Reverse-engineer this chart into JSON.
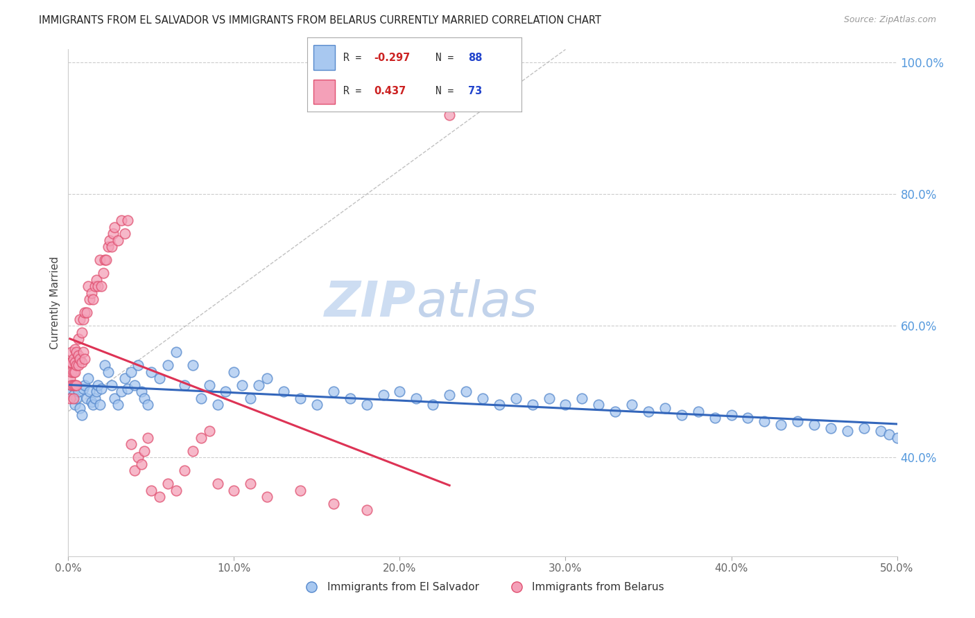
{
  "title": "IMMIGRANTS FROM EL SALVADOR VS IMMIGRANTS FROM BELARUS CURRENTLY MARRIED CORRELATION CHART",
  "source": "Source: ZipAtlas.com",
  "ylabel": "Currently Married",
  "xmin": 0.0,
  "xmax": 0.5,
  "ymin": 0.25,
  "ymax": 1.02,
  "yticks": [
    0.4,
    0.6,
    0.8,
    1.0
  ],
  "ytick_labels": [
    "40.0%",
    "60.0%",
    "80.0%",
    "100.0%"
  ],
  "xticks": [
    0.0,
    0.1,
    0.2,
    0.3,
    0.4,
    0.5
  ],
  "xtick_labels": [
    "0.0%",
    "10.0%",
    "20.0%",
    "30.0%",
    "40.0%",
    "50.0%"
  ],
  "blue_label": "Immigrants from El Salvador",
  "pink_label": "Immigrants from Belarus",
  "blue_color": "#A8C8F0",
  "pink_color": "#F4A0B8",
  "blue_edge_color": "#5588CC",
  "pink_edge_color": "#E05070",
  "blue_line_color": "#3366BB",
  "pink_line_color": "#DD3355",
  "ref_line_color": "#BBBBBB",
  "grid_color": "#CCCCCC",
  "bg_color": "#FFFFFF",
  "watermark_zip_color": "#C8D8F0",
  "watermark_atlas_color": "#C8D8F0",
  "blue_scatter_x": [
    0.001,
    0.002,
    0.003,
    0.004,
    0.005,
    0.006,
    0.007,
    0.008,
    0.009,
    0.01,
    0.011,
    0.012,
    0.013,
    0.014,
    0.015,
    0.016,
    0.017,
    0.018,
    0.019,
    0.02,
    0.022,
    0.024,
    0.026,
    0.028,
    0.03,
    0.032,
    0.034,
    0.036,
    0.038,
    0.04,
    0.042,
    0.044,
    0.046,
    0.048,
    0.05,
    0.055,
    0.06,
    0.065,
    0.07,
    0.075,
    0.08,
    0.085,
    0.09,
    0.095,
    0.1,
    0.105,
    0.11,
    0.115,
    0.12,
    0.13,
    0.14,
    0.15,
    0.16,
    0.17,
    0.18,
    0.19,
    0.2,
    0.21,
    0.22,
    0.23,
    0.24,
    0.25,
    0.26,
    0.27,
    0.28,
    0.29,
    0.3,
    0.31,
    0.32,
    0.33,
    0.34,
    0.35,
    0.36,
    0.37,
    0.38,
    0.39,
    0.4,
    0.41,
    0.42,
    0.43,
    0.44,
    0.45,
    0.46,
    0.47,
    0.48,
    0.49,
    0.495,
    0.5
  ],
  "blue_scatter_y": [
    0.5,
    0.51,
    0.495,
    0.48,
    0.49,
    0.5,
    0.475,
    0.465,
    0.505,
    0.51,
    0.49,
    0.52,
    0.5,
    0.485,
    0.48,
    0.49,
    0.5,
    0.51,
    0.48,
    0.505,
    0.54,
    0.53,
    0.51,
    0.49,
    0.48,
    0.5,
    0.52,
    0.505,
    0.53,
    0.51,
    0.54,
    0.5,
    0.49,
    0.48,
    0.53,
    0.52,
    0.54,
    0.56,
    0.51,
    0.54,
    0.49,
    0.51,
    0.48,
    0.5,
    0.53,
    0.51,
    0.49,
    0.51,
    0.52,
    0.5,
    0.49,
    0.48,
    0.5,
    0.49,
    0.48,
    0.495,
    0.5,
    0.49,
    0.48,
    0.495,
    0.5,
    0.49,
    0.48,
    0.49,
    0.48,
    0.49,
    0.48,
    0.49,
    0.48,
    0.47,
    0.48,
    0.47,
    0.475,
    0.465,
    0.47,
    0.46,
    0.465,
    0.46,
    0.455,
    0.45,
    0.455,
    0.45,
    0.445,
    0.44,
    0.445,
    0.44,
    0.435,
    0.43
  ],
  "pink_scatter_x": [
    0.001,
    0.001,
    0.001,
    0.002,
    0.002,
    0.002,
    0.002,
    0.003,
    0.003,
    0.003,
    0.003,
    0.004,
    0.004,
    0.004,
    0.004,
    0.005,
    0.005,
    0.005,
    0.006,
    0.006,
    0.006,
    0.007,
    0.007,
    0.008,
    0.008,
    0.009,
    0.009,
    0.01,
    0.01,
    0.011,
    0.012,
    0.013,
    0.014,
    0.015,
    0.016,
    0.017,
    0.018,
    0.019,
    0.02,
    0.021,
    0.022,
    0.023,
    0.024,
    0.025,
    0.026,
    0.027,
    0.028,
    0.03,
    0.032,
    0.034,
    0.036,
    0.038,
    0.04,
    0.042,
    0.044,
    0.046,
    0.048,
    0.05,
    0.055,
    0.06,
    0.065,
    0.07,
    0.075,
    0.08,
    0.085,
    0.09,
    0.1,
    0.11,
    0.12,
    0.14,
    0.16,
    0.18,
    0.23
  ],
  "pink_scatter_y": [
    0.49,
    0.52,
    0.545,
    0.51,
    0.53,
    0.545,
    0.56,
    0.49,
    0.51,
    0.53,
    0.55,
    0.51,
    0.53,
    0.545,
    0.565,
    0.51,
    0.54,
    0.56,
    0.54,
    0.555,
    0.58,
    0.55,
    0.61,
    0.545,
    0.59,
    0.56,
    0.61,
    0.55,
    0.62,
    0.62,
    0.66,
    0.64,
    0.65,
    0.64,
    0.66,
    0.67,
    0.66,
    0.7,
    0.66,
    0.68,
    0.7,
    0.7,
    0.72,
    0.73,
    0.72,
    0.74,
    0.75,
    0.73,
    0.76,
    0.74,
    0.76,
    0.42,
    0.38,
    0.4,
    0.39,
    0.41,
    0.43,
    0.35,
    0.34,
    0.36,
    0.35,
    0.38,
    0.41,
    0.43,
    0.44,
    0.36,
    0.35,
    0.36,
    0.34,
    0.35,
    0.33,
    0.32,
    0.92
  ],
  "figsize": [
    14.06,
    8.92
  ],
  "dpi": 100
}
